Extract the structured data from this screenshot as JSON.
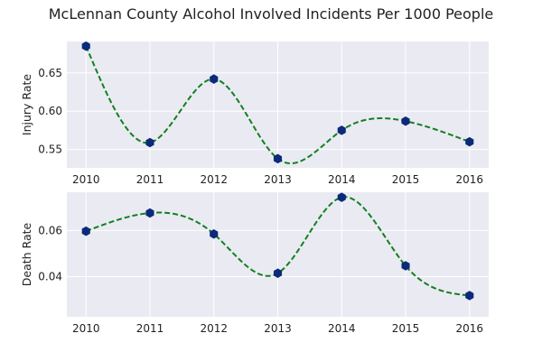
{
  "title": "McLennan County Alcohol Involved Incidents Per 1000 People",
  "chart_data": [
    {
      "type": "line",
      "ylabel": "Injury Rate",
      "xlabel": "",
      "x": [
        2010,
        2011,
        2012,
        2013,
        2014,
        2015,
        2016
      ],
      "series": [
        {
          "values": [
            0.685,
            0.559,
            0.642,
            0.538,
            0.575,
            0.587,
            0.56
          ]
        }
      ],
      "x_ticks": [
        "2010",
        "2011",
        "2012",
        "2013",
        "2014",
        "2015",
        "2016"
      ],
      "y_ticks": [
        "0.55",
        "0.60",
        "0.65"
      ],
      "y_tick_values": [
        0.55,
        0.6,
        0.65
      ],
      "xlim": [
        2009.7,
        2016.3
      ],
      "ylim": [
        0.526,
        0.691
      ],
      "grid": true,
      "line_color": "#11801f",
      "line_style": "dashed, smooth",
      "marker_color": "#0c2a7a",
      "marker": "hexagon",
      "background": "#eaeaf2"
    },
    {
      "type": "line",
      "ylabel": "Death Rate",
      "xlabel": "",
      "x": [
        2010,
        2011,
        2012,
        2013,
        2014,
        2015,
        2016
      ],
      "series": [
        {
          "values": [
            0.0597,
            0.0676,
            0.0585,
            0.0415,
            0.0744,
            0.0447,
            0.0318
          ]
        }
      ],
      "x_ticks": [
        "2010",
        "2011",
        "2012",
        "2013",
        "2014",
        "2015",
        "2016"
      ],
      "y_ticks": [
        "0.04",
        "0.06"
      ],
      "y_tick_values": [
        0.04,
        0.06
      ],
      "xlim": [
        2009.7,
        2016.3
      ],
      "ylim": [
        0.0226,
        0.0766
      ],
      "grid": true,
      "line_color": "#11801f",
      "line_style": "dashed, smooth",
      "marker_color": "#0c2a7a",
      "marker": "hexagon",
      "background": "#eaeaf2"
    }
  ]
}
